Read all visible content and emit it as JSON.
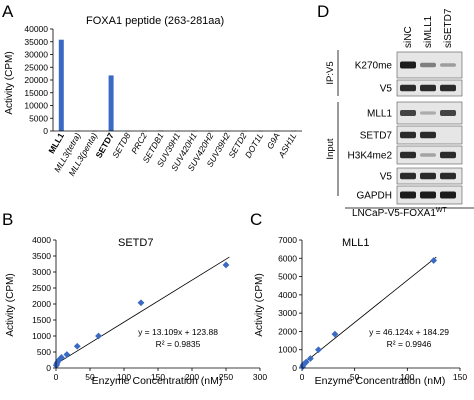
{
  "colors": {
    "bar": "#3a6ac4",
    "marker": "#3a6ac4",
    "line": "#000000",
    "band": "#1c1c1c",
    "blot_bg": "#e6e6e6"
  },
  "panels": {
    "a": "A",
    "b": "B",
    "c": "C",
    "d": "D"
  },
  "chart_data": [
    {
      "type": "bar",
      "title": "FOXA1 peptide (263-281aa)",
      "ylabel": "Activity (CPM)",
      "ylim": [
        0,
        40000
      ],
      "yticks": [
        "0",
        "5000",
        "10000",
        "15000",
        "20000",
        "25000",
        "30000",
        "35000",
        "40000"
      ],
      "categories": [
        "MLL1",
        "MLL3(tetra)",
        "MLL3(penta)",
        "SETD7",
        "SETD8",
        "PRC2",
        "SETDB1",
        "SUV39H1",
        "SUV420H1",
        "SUV420H2",
        "SUV39H2",
        "SETD2",
        "DOT1L",
        "G9A",
        "ASH1L"
      ],
      "bold_categories": [
        "MLL1",
        "SETD7"
      ],
      "values": [
        35800,
        120,
        100,
        21800,
        90,
        90,
        200,
        60,
        80,
        60,
        80,
        70,
        60,
        120,
        90
      ],
      "grid": false
    },
    {
      "type": "scatter",
      "title": "SETD7",
      "xlabel": "Enzyme Concentration (nM)",
      "ylabel": "Activity (CPM)",
      "xlim": [
        0,
        300
      ],
      "ylim": [
        0,
        4000
      ],
      "xticks": [
        "0",
        "50",
        "100",
        "150",
        "200",
        "250",
        "300"
      ],
      "yticks": [
        "0",
        "500",
        "1000",
        "1500",
        "2000",
        "2500",
        "3000",
        "3500",
        "4000"
      ],
      "x": [
        0.5,
        1,
        2,
        4,
        8,
        16,
        31.25,
        62.5,
        125,
        250
      ],
      "y": [
        80,
        120,
        170,
        240,
        330,
        420,
        680,
        1000,
        2040,
        3220
      ],
      "fit": {
        "slope": 13.109,
        "intercept": 123.88
      },
      "equation": "y = 13.109x + 123.88",
      "r2": "R² = 0.9835",
      "grid": false
    },
    {
      "type": "scatter",
      "title": "MLL1",
      "xlabel": "Enzyme Concentration (nM)",
      "ylabel": "Activity (CPM)",
      "xlim": [
        0,
        150
      ],
      "ylim": [
        0,
        7000
      ],
      "xticks": [
        "0",
        "50",
        "100",
        "150"
      ],
      "yticks": [
        "0",
        "1000",
        "2000",
        "3000",
        "4000",
        "5000",
        "6000",
        "7000"
      ],
      "x": [
        0.5,
        1,
        2,
        4,
        8,
        15.6,
        31.25,
        125
      ],
      "y": [
        60,
        160,
        220,
        330,
        520,
        1000,
        1850,
        5880
      ],
      "fit": {
        "slope": 46.124,
        "intercept": 184.29
      },
      "equation": "y = 46.124x + 184.29",
      "r2": "R² = 0.9946",
      "grid": false
    }
  ],
  "blot": {
    "lanes": [
      "siNC",
      "siMLL1",
      "siSETD7"
    ],
    "ip_label": "IP:V5",
    "input_label": "Input",
    "rows": [
      {
        "label": "K270me",
        "levels": [
          1.0,
          0.35,
          0.15
        ]
      },
      {
        "label": "V5",
        "levels": [
          0.9,
          0.9,
          0.9
        ]
      },
      {
        "label": "MLL1",
        "levels": [
          0.75,
          0.05,
          0.75
        ]
      },
      {
        "label": "SETD7",
        "levels": [
          0.9,
          0.9,
          0.0
        ]
      },
      {
        "label": "H3K4me2",
        "levels": [
          0.9,
          0.1,
          0.9
        ]
      },
      {
        "label": "V5",
        "levels": [
          0.9,
          0.9,
          0.9
        ]
      },
      {
        "label": "GAPDH",
        "levels": [
          1.0,
          1.0,
          1.0
        ]
      }
    ],
    "cell_line": "LNCaP-V5-FOXA1",
    "cell_line_sup": "WT"
  }
}
